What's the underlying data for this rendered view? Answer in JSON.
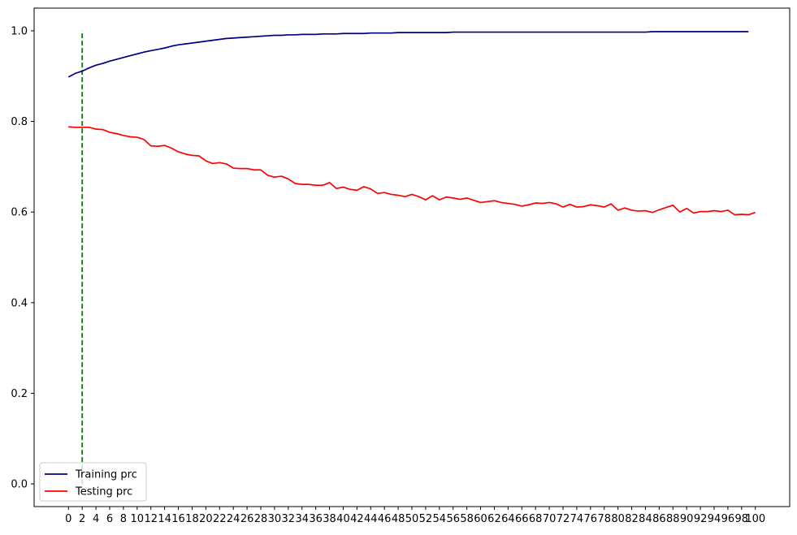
{
  "chart_data": {
    "type": "line",
    "title": "",
    "xlabel": "",
    "ylabel": "",
    "xlim": [
      -5,
      105
    ],
    "ylim": [
      -0.05,
      1.05
    ],
    "x_ticks": [
      0,
      2,
      4,
      6,
      8,
      10,
      12,
      14,
      16,
      18,
      20,
      22,
      24,
      26,
      28,
      30,
      32,
      34,
      36,
      38,
      40,
      42,
      44,
      46,
      48,
      50,
      52,
      54,
      56,
      58,
      60,
      62,
      64,
      66,
      68,
      70,
      72,
      74,
      76,
      78,
      80,
      82,
      84,
      86,
      88,
      90,
      92,
      94,
      96,
      98,
      100
    ],
    "y_ticks": [
      0.0,
      0.2,
      0.4,
      0.6,
      0.8,
      1.0
    ],
    "y_tick_labels": [
      "0.0",
      "0.2",
      "0.4",
      "0.6",
      "0.8",
      "1.0"
    ],
    "grid": false,
    "legend_position": "lower-left",
    "series": [
      {
        "name": "Training prc",
        "color": "#000080",
        "x_start": 0,
        "values": [
          0.898,
          0.906,
          0.911,
          0.918,
          0.924,
          0.928,
          0.933,
          0.937,
          0.941,
          0.945,
          0.949,
          0.953,
          0.956,
          0.959,
          0.962,
          0.966,
          0.969,
          0.971,
          0.973,
          0.975,
          0.977,
          0.979,
          0.981,
          0.983,
          0.984,
          0.985,
          0.986,
          0.987,
          0.988,
          0.989,
          0.99,
          0.99,
          0.991,
          0.991,
          0.992,
          0.992,
          0.992,
          0.993,
          0.993,
          0.993,
          0.994,
          0.994,
          0.994,
          0.994,
          0.995,
          0.995,
          0.995,
          0.995,
          0.996,
          0.996,
          0.996,
          0.996,
          0.996,
          0.996,
          0.996,
          0.996,
          0.997,
          0.997,
          0.997,
          0.997,
          0.997,
          0.997,
          0.997,
          0.997,
          0.997,
          0.997,
          0.997,
          0.997,
          0.997,
          0.997,
          0.997,
          0.997,
          0.997,
          0.997,
          0.997,
          0.997,
          0.997,
          0.997,
          0.997,
          0.997,
          0.997,
          0.997,
          0.997,
          0.997,
          0.997,
          0.998,
          0.998,
          0.998,
          0.998,
          0.998,
          0.998,
          0.998,
          0.998,
          0.998,
          0.998,
          0.998,
          0.998,
          0.998,
          0.998,
          0.998
        ]
      },
      {
        "name": "Testing prc",
        "color": "#ff0000",
        "x_start": 0,
        "values": [
          0.788,
          0.787,
          0.787,
          0.787,
          0.783,
          0.782,
          0.776,
          0.773,
          0.769,
          0.766,
          0.765,
          0.76,
          0.746,
          0.745,
          0.747,
          0.741,
          0.733,
          0.728,
          0.725,
          0.724,
          0.713,
          0.707,
          0.709,
          0.706,
          0.697,
          0.696,
          0.696,
          0.693,
          0.693,
          0.681,
          0.677,
          0.679,
          0.673,
          0.663,
          0.661,
          0.661,
          0.659,
          0.659,
          0.665,
          0.652,
          0.655,
          0.65,
          0.648,
          0.656,
          0.651,
          0.641,
          0.643,
          0.639,
          0.637,
          0.634,
          0.639,
          0.634,
          0.627,
          0.636,
          0.627,
          0.633,
          0.631,
          0.628,
          0.631,
          0.626,
          0.621,
          0.623,
          0.625,
          0.621,
          0.619,
          0.617,
          0.613,
          0.616,
          0.62,
          0.619,
          0.621,
          0.618,
          0.611,
          0.617,
          0.611,
          0.612,
          0.616,
          0.614,
          0.611,
          0.618,
          0.604,
          0.609,
          0.604,
          0.602,
          0.603,
          0.599,
          0.605,
          0.61,
          0.615,
          0.6,
          0.608,
          0.598,
          0.601,
          0.601,
          0.603,
          0.601,
          0.604,
          0.594,
          0.595,
          0.594,
          0.599
        ]
      }
    ],
    "annotations": [
      {
        "type": "vline",
        "x": 2,
        "y_from": 0.0,
        "y_to": 1.0,
        "color": "#008000",
        "style": "dashed"
      }
    ]
  }
}
